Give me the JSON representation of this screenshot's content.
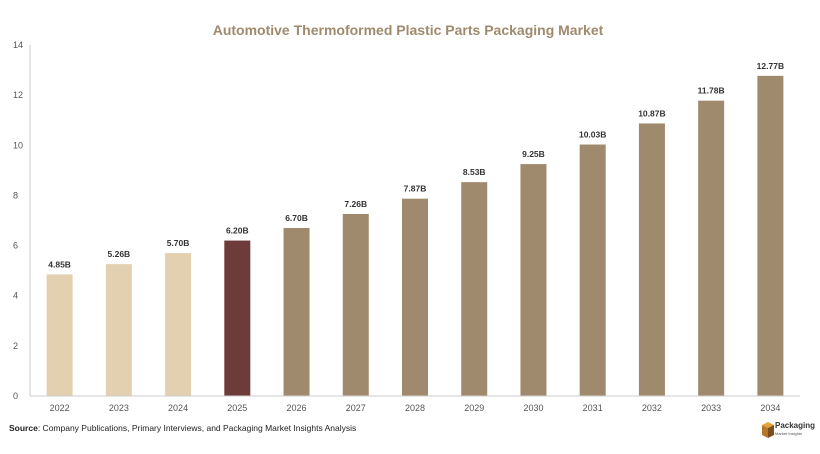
{
  "chart_data": {
    "type": "bar",
    "title": "Automotive Thermoformed Plastic Parts Packaging Market",
    "categories": [
      "2022",
      "2023",
      "2024",
      "2025",
      "2026",
      "2027",
      "2028",
      "2029",
      "2030",
      "2031",
      "2032",
      "2033",
      "2034"
    ],
    "values": [
      4.85,
      5.26,
      5.7,
      6.2,
      6.7,
      7.26,
      7.87,
      8.53,
      9.25,
      10.03,
      10.87,
      11.78,
      12.77
    ],
    "data_labels": [
      "4.85B",
      "5.26B",
      "5.70B",
      "6.20B",
      "6.70B",
      "7.26B",
      "7.87B",
      "8.53B",
      "9.25B",
      "10.03B",
      "10.87B",
      "11.78B",
      "12.77B"
    ],
    "bar_colors": [
      "#e3d0b1",
      "#e3d0b1",
      "#e3d0b1",
      "#6e3b3b",
      "#a08a6d",
      "#a08a6d",
      "#a08a6d",
      "#a08a6d",
      "#a08a6d",
      "#a08a6d",
      "#a08a6d",
      "#a08a6d",
      "#a08a6d"
    ],
    "ylim": [
      0,
      14
    ],
    "yticks": [
      0,
      2,
      4,
      6,
      8,
      10,
      12,
      14
    ],
    "xlabel": "",
    "ylabel": "",
    "grid": false,
    "legend": "none"
  },
  "footer": {
    "source_label": "Source",
    "source_text": ": Company Publications, Primary Interviews, and Packaging Market Insights Analysis"
  },
  "logo": {
    "name": "Packaging",
    "tagline": "Market Insights"
  },
  "colors": {
    "title": "#a08a6d",
    "axis": "#cccccc"
  }
}
